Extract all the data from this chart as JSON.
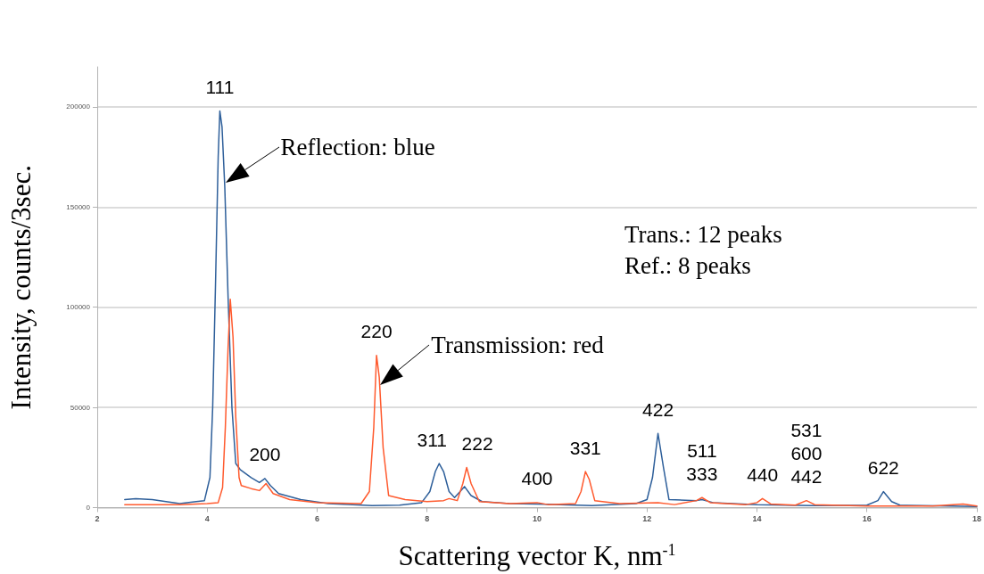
{
  "chart_data": {
    "type": "line",
    "xlabel": "Scattering vector K, nm$^{-1}$",
    "ylabel": "Intensity, counts/3sec.",
    "xlim": [
      2,
      18
    ],
    "xticks": [
      2,
      4,
      6,
      8,
      10,
      12,
      14,
      16,
      18
    ],
    "ylim": [
      0,
      220000
    ],
    "yticks": [
      0,
      50000,
      100000,
      150000,
      200000
    ],
    "grid": "y",
    "line_style": "solid",
    "series": [
      {
        "color": "#2e5f9a",
        "x": [
          2.5,
          2.7,
          3.0,
          3.5,
          3.8,
          3.95,
          4.05,
          4.1,
          4.15,
          4.2,
          4.23,
          4.27,
          4.32,
          4.38,
          4.45,
          4.52,
          4.6,
          4.8,
          4.95,
          5.05,
          5.15,
          5.3,
          5.7,
          6.2,
          7.0,
          7.5,
          7.9,
          8.05,
          8.15,
          8.22,
          8.3,
          8.4,
          8.5,
          8.6,
          8.68,
          8.8,
          9.0,
          9.5,
          10.0,
          11.0,
          11.8,
          12.0,
          12.1,
          12.2,
          12.3,
          12.4,
          12.9,
          13.0,
          13.2,
          14.0,
          15.0,
          16.0,
          16.2,
          16.3,
          16.45,
          16.6,
          17.0,
          18.0
        ],
        "values": [
          4000,
          4500,
          4000,
          2000,
          3000,
          3500,
          15000,
          50000,
          110000,
          175000,
          198000,
          190000,
          160000,
          105000,
          50000,
          22000,
          19000,
          15000,
          12500,
          14500,
          11000,
          7000,
          4000,
          2000,
          1000,
          1200,
          2500,
          8000,
          18000,
          22000,
          18000,
          8000,
          5000,
          8000,
          10500,
          6000,
          3000,
          2000,
          1800,
          1000,
          2000,
          4000,
          15000,
          37000,
          20000,
          4000,
          3500,
          4000,
          2500,
          1500,
          1000,
          1200,
          3500,
          8000,
          3000,
          1200,
          1000,
          600
        ]
      },
      {
        "color": "#ff5a2e",
        "x": [
          2.5,
          3.5,
          4.0,
          4.2,
          4.28,
          4.33,
          4.38,
          4.42,
          4.47,
          4.52,
          4.58,
          4.62,
          4.8,
          4.95,
          5.07,
          5.2,
          5.5,
          6.0,
          6.8,
          6.95,
          7.03,
          7.08,
          7.13,
          7.2,
          7.3,
          7.6,
          8.0,
          8.3,
          8.4,
          8.55,
          8.65,
          8.72,
          8.8,
          8.95,
          9.5,
          10.0,
          10.2,
          10.7,
          10.8,
          10.88,
          10.95,
          11.05,
          11.5,
          12.2,
          12.5,
          12.9,
          13.0,
          13.15,
          13.8,
          14.0,
          14.1,
          14.25,
          14.7,
          14.9,
          15.05,
          16.0,
          17.2,
          17.75,
          18.0
        ],
        "values": [
          1500,
          1500,
          2000,
          2500,
          10000,
          40000,
          80000,
          104000,
          85000,
          45000,
          15000,
          11000,
          9500,
          8500,
          12000,
          7000,
          4000,
          2500,
          2000,
          8000,
          40000,
          76000,
          65000,
          30000,
          6000,
          4000,
          3000,
          3500,
          4500,
          3500,
          12000,
          20000,
          12000,
          3000,
          2000,
          2500,
          1500,
          2000,
          8000,
          18000,
          14000,
          3500,
          2000,
          2500,
          1500,
          3500,
          5000,
          2500,
          1500,
          2500,
          4500,
          1800,
          1200,
          3500,
          1500,
          800,
          800,
          1800,
          800
        ]
      }
    ],
    "annotations": [
      {
        "text": "111",
        "x": 4.23,
        "y": 198000
      },
      {
        "text": "200",
        "x": 5.05,
        "y": 14500
      },
      {
        "text": "220",
        "x": 7.08,
        "y": 76000
      },
      {
        "text": "311",
        "x": 8.22,
        "y": 22000
      },
      {
        "text": "222",
        "x": 8.72,
        "y": 20000
      },
      {
        "text": "400",
        "x": 10.0,
        "y": 2500
      },
      {
        "text": "331",
        "x": 10.88,
        "y": 18000
      },
      {
        "text": "422",
        "x": 12.2,
        "y": 37000
      },
      {
        "text": "511\n333",
        "x": 13.0,
        "y": 5000
      },
      {
        "text": "440",
        "x": 14.1,
        "y": 4500
      },
      {
        "text": "531\n600\n442",
        "x": 14.9,
        "y": 3500
      },
      {
        "text": "622",
        "x": 16.3,
        "y": 8000
      },
      {
        "text": "Reflection: blue",
        "x": 4.33,
        "y": 162000
      },
      {
        "text": "Transmission: red",
        "x": 7.15,
        "y": 61000
      },
      "Trans.: 12 peaks",
      "Ref.: 8 peaks"
    ]
  }
}
